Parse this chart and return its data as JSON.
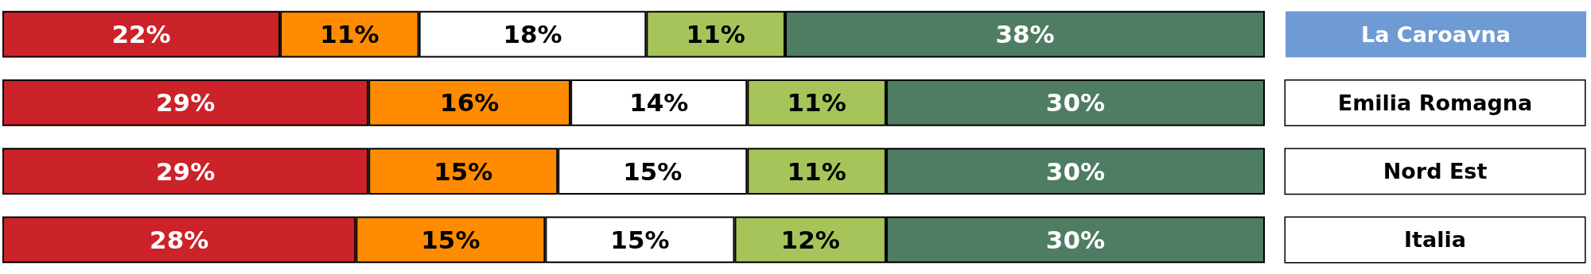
{
  "chart_data": {
    "type": "bar",
    "orientation": "horizontal",
    "stacked": true,
    "categories": [
      "La Caroavna",
      "Emilia Romagna",
      "Nord Est",
      "Italia"
    ],
    "series": [
      {
        "color": "#cc2229",
        "values": [
          22,
          29,
          29,
          28
        ],
        "value_labels": [
          "22%",
          "29%",
          "29%",
          "28%"
        ]
      },
      {
        "color": "#ff8c00",
        "values": [
          11,
          16,
          15,
          15
        ],
        "value_labels": [
          "11%",
          "16%",
          "15%",
          "15%"
        ]
      },
      {
        "color": "#ffffff",
        "values": [
          18,
          14,
          15,
          15
        ],
        "value_labels": [
          "18%",
          "14%",
          "15%",
          "15%"
        ]
      },
      {
        "color": "#a6c45a",
        "values": [
          11,
          11,
          11,
          12
        ],
        "value_labels": [
          "11%",
          "11%",
          "11%",
          "12%"
        ]
      },
      {
        "color": "#4e7d63",
        "values": [
          38,
          30,
          30,
          30
        ],
        "value_labels": [
          "38%",
          "30%",
          "30%",
          "30%"
        ]
      }
    ]
  }
}
